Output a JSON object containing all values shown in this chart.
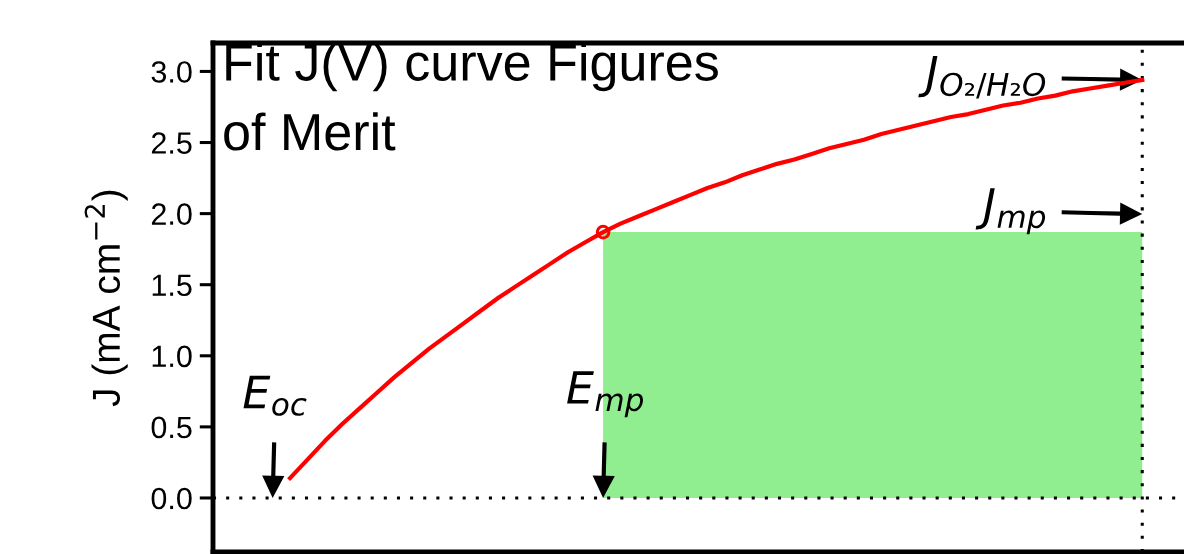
{
  "chart_data": {
    "type": "line",
    "title": "Fit J(V) curve Figures of Merit",
    "ylabel": "J (mA cm$^{−2}$)",
    "categories": [
      null,
      null,
      null,
      null,
      null,
      null,
      null,
      null,
      null,
      null,
      null,
      null,
      null,
      null,
      null,
      null,
      null,
      null,
      null,
      null,
      null,
      null,
      null,
      null,
      null,
      null,
      null,
      null,
      null,
      null,
      null,
      null,
      null,
      null,
      null,
      null,
      null,
      null,
      null,
      null,
      null,
      null,
      null,
      null,
      null,
      null,
      null,
      null,
      null,
      null,
      null
    ],
    "series": [
      {
        "type": "area",
        "color": "#90ee90",
        "values": [
          null,
          null,
          null,
          null,
          null,
          null,
          null,
          null,
          null,
          null,
          null,
          null,
          null,
          null,
          null,
          null,
          null,
          null,
          null,
          1.87,
          1.87,
          1.87,
          1.87,
          1.87,
          1.87,
          1.87,
          1.87,
          1.87,
          1.87,
          1.87,
          1.87,
          1.87,
          1.87,
          1.87,
          1.87,
          1.87,
          1.87,
          1.87,
          1.87,
          1.87,
          1.87,
          1.87,
          1.87,
          1.87,
          1.87,
          1.87,
          1.87,
          1.87,
          1.87,
          1.87,
          1.87
        ]
      },
      {
        "color": "#ff0000",
        "values": [
          null,
          0.14,
          0.27,
          0.4,
          0.52,
          0.63,
          0.74,
          0.85,
          0.95,
          1.05,
          1.14,
          1.23,
          1.32,
          1.41,
          1.49,
          1.57,
          1.65,
          1.73,
          1.8,
          1.87,
          1.93,
          1.98,
          2.03,
          2.08,
          2.13,
          2.18,
          2.22,
          2.27,
          2.31,
          2.35,
          2.38,
          2.42,
          2.46,
          2.49,
          2.52,
          2.56,
          2.59,
          2.62,
          2.65,
          2.68,
          2.7,
          2.73,
          2.76,
          2.78,
          2.81,
          2.83,
          2.86,
          2.88,
          2.9,
          2.92,
          2.94
        ]
      },
      {
        "type": "scatter",
        "color": "#ff0000",
        "marker": "circle",
        "values": [
          null,
          null,
          null,
          null,
          null,
          null,
          null,
          null,
          null,
          null,
          null,
          null,
          null,
          null,
          null,
          null,
          null,
          null,
          null,
          1.87,
          null,
          null,
          null,
          null,
          null,
          null,
          null,
          null,
          null,
          null,
          null,
          null,
          null,
          null,
          null,
          null,
          null,
          null,
          null,
          null,
          null,
          null,
          null,
          null,
          null,
          null,
          null,
          null,
          null,
          null,
          null
        ]
      }
    ],
    "ylim": [
      -0.38,
      3.2
    ],
    "yticks": [
      {
        "value": 0,
        "label": "0.0"
      },
      0.5,
      {
        "value": 1,
        "label": "1.0"
      },
      1.5,
      {
        "value": 2,
        "label": "2.0"
      },
      2.5,
      {
        "value": 3,
        "label": "3.0"
      }
    ],
    "tick_labels": "y",
    "ref_lines": [
      {
        "axis": "y",
        "value": 0,
        "color": "#000000",
        "line_style": "dotted"
      }
    ],
    "annotations": [
      {
        "text": "E$_{oc}$",
        "y": 0
      },
      {
        "text": "E$_{mp}$",
        "y": 0
      },
      {
        "text": "J$_{mp}$",
        "y": 1.87
      },
      "J$_{O₂/H₂O}$"
    ]
  }
}
